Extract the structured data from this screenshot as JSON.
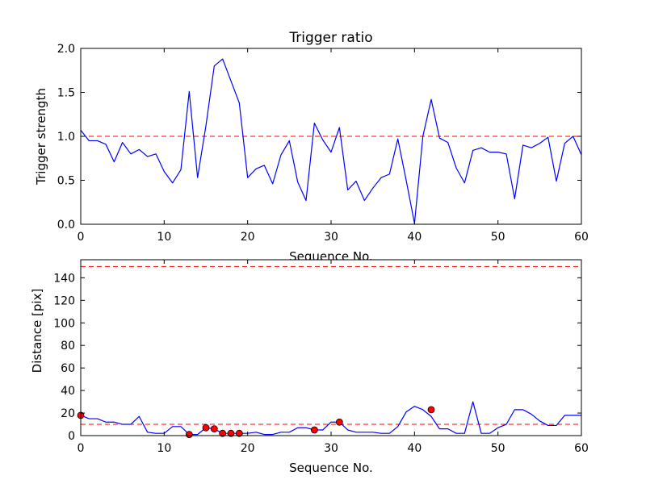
{
  "chart_data": [
    {
      "type": "line",
      "title": "Trigger ratio",
      "xlabel": "Sequence No.",
      "ylabel": "Trigger strength",
      "xlim": [
        0,
        60
      ],
      "ylim": [
        0,
        2.0
      ],
      "xticks": [
        0,
        10,
        20,
        30,
        40,
        50,
        60
      ],
      "yticks": [
        0.0,
        0.5,
        1.0,
        1.5,
        2.0
      ],
      "ytick_labels": [
        "0.0",
        "0.5",
        "1.0",
        "1.5",
        "2.0"
      ],
      "grid": false,
      "series": [
        {
          "name": "trigger strength",
          "color": "#0000ff",
          "x": [
            0,
            1,
            2,
            3,
            4,
            5,
            6,
            7,
            8,
            9,
            10,
            11,
            12,
            13,
            14,
            15,
            16,
            17,
            18,
            19,
            20,
            21,
            22,
            23,
            24,
            25,
            26,
            27,
            28,
            29,
            30,
            31,
            32,
            33,
            34,
            35,
            36,
            37,
            38,
            39,
            40,
            41,
            42,
            43,
            44,
            45,
            46,
            47,
            48,
            49,
            50,
            51,
            52,
            53,
            54,
            55,
            56,
            57,
            58,
            59,
            60
          ],
          "values": [
            1.07,
            0.95,
            0.95,
            0.91,
            0.71,
            0.93,
            0.8,
            0.85,
            0.77,
            0.8,
            0.6,
            0.47,
            0.62,
            1.51,
            0.53,
            1.12,
            1.8,
            1.88,
            1.63,
            1.38,
            0.53,
            0.63,
            0.67,
            0.46,
            0.79,
            0.95,
            0.48,
            0.27,
            1.15,
            0.96,
            0.82,
            1.1,
            0.39,
            0.49,
            0.27,
            0.41,
            0.53,
            0.57,
            0.97,
            0.5,
            0.01,
            1.0,
            1.42,
            0.98,
            0.93,
            0.64,
            0.47,
            0.84,
            0.87,
            0.82,
            0.82,
            0.8,
            0.29,
            0.9,
            0.87,
            0.92,
            0.99,
            0.49,
            0.92,
            1.0,
            0.79
          ]
        }
      ],
      "reference_lines": [
        {
          "y": 1.0,
          "color": "#ff0000",
          "style": "dashed"
        }
      ]
    },
    {
      "type": "line",
      "title": "",
      "xlabel": "Sequence No.",
      "ylabel": "Distance [pix]",
      "xlim": [
        0,
        60
      ],
      "ylim": [
        0,
        156
      ],
      "xticks": [
        0,
        10,
        20,
        30,
        40,
        50,
        60
      ],
      "yticks": [
        0,
        20,
        40,
        60,
        80,
        100,
        120,
        140
      ],
      "grid": false,
      "series": [
        {
          "name": "distance",
          "color": "#0000ff",
          "x": [
            0,
            1,
            2,
            3,
            4,
            5,
            6,
            7,
            8,
            9,
            10,
            11,
            12,
            13,
            14,
            15,
            16,
            17,
            18,
            19,
            20,
            21,
            22,
            23,
            24,
            25,
            26,
            27,
            28,
            29,
            30,
            31,
            32,
            33,
            34,
            35,
            36,
            37,
            38,
            39,
            40,
            41,
            42,
            43,
            44,
            45,
            46,
            47,
            48,
            49,
            50,
            51,
            52,
            53,
            54,
            55,
            56,
            57,
            58,
            59,
            60
          ],
          "values": [
            18,
            15,
            15,
            12,
            12,
            10,
            10,
            17,
            3,
            2,
            2,
            8,
            8,
            1,
            1,
            7,
            6,
            2,
            2,
            2,
            2,
            3,
            1,
            1,
            3,
            3,
            7,
            7,
            5,
            5,
            12,
            12,
            5,
            3,
            3,
            3,
            2,
            2,
            8,
            21,
            26,
            23,
            17,
            6,
            6,
            2,
            2,
            30,
            2,
            2,
            7,
            10,
            23,
            23,
            19,
            13,
            9,
            9,
            18,
            18,
            18
          ]
        },
        {
          "name": "flagged points",
          "type": "scatter",
          "color": "#ff0000",
          "x": [
            0,
            13,
            15,
            16,
            17,
            18,
            19,
            28,
            31,
            42
          ],
          "values": [
            18,
            1,
            7,
            6,
            2,
            2,
            2,
            5,
            12,
            23
          ]
        }
      ],
      "reference_lines": [
        {
          "y": 10,
          "color": "#ff0000",
          "style": "dashed"
        },
        {
          "y": 150,
          "color": "#ff0000",
          "style": "dashed"
        }
      ]
    }
  ]
}
